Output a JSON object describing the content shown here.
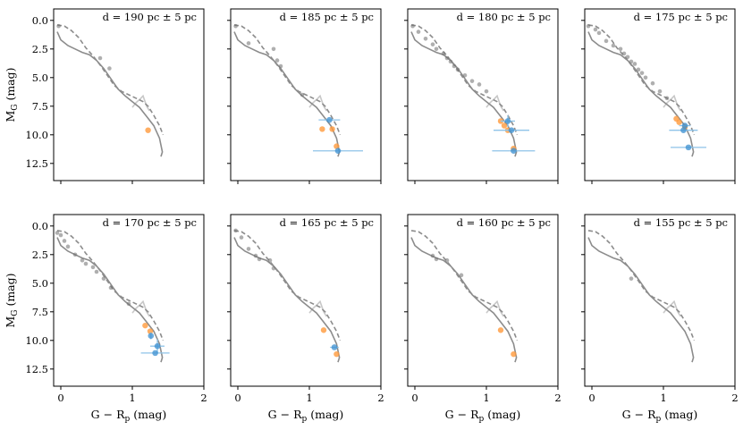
{
  "chart_data": {
    "type": "scatter",
    "layout": "2 rows x 4 columns of panels",
    "xlabel": "G − R",
    "xlabel_sub": "p",
    "xlabel_unit": "(mag)",
    "ylabel": "M",
    "ylabel_sub": "G",
    "ylabel_unit": "(mag)",
    "xlim": [
      -0.1,
      2.0
    ],
    "ylim": [
      14.0,
      -1.0
    ],
    "xticks": [
      0,
      1,
      2
    ],
    "yticks": [
      0.0,
      2.5,
      5.0,
      7.5,
      10.0,
      12.5
    ],
    "ytick_labels": [
      "0.0",
      "2.5",
      "5.0",
      "7.5",
      "10.0",
      "12.5"
    ],
    "series_meta": [
      {
        "name": "isochrone (solid)",
        "color": "#8c8c8c"
      },
      {
        "name": "isochrone (dashed)",
        "color": "#8c8c8c"
      },
      {
        "name": "isochrone (light)",
        "color": "#c8c8c8"
      },
      {
        "name": "gray stars",
        "color": "#6e6e6e"
      },
      {
        "name": "orange stars",
        "color": "#ff9a3c"
      },
      {
        "name": "blue stars",
        "color": "#3b8fd0"
      }
    ],
    "isochrones": {
      "solid": [
        [
          -0.05,
          1.0
        ],
        [
          0.0,
          1.7
        ],
        [
          0.1,
          2.2
        ],
        [
          0.2,
          2.5
        ],
        [
          0.3,
          2.8
        ],
        [
          0.4,
          3.0
        ],
        [
          0.5,
          3.5
        ],
        [
          0.6,
          4.2
        ],
        [
          0.7,
          5.1
        ],
        [
          0.8,
          6.0
        ],
        [
          0.9,
          6.6
        ],
        [
          1.0,
          7.1
        ],
        [
          1.1,
          7.6
        ],
        [
          1.2,
          8.4
        ],
        [
          1.3,
          9.2
        ],
        [
          1.38,
          10.3
        ],
        [
          1.42,
          11.5
        ],
        [
          1.4,
          11.9
        ]
      ],
      "dashed": [
        [
          -0.05,
          0.4
        ],
        [
          0.05,
          0.5
        ],
        [
          0.15,
          0.9
        ],
        [
          0.25,
          1.5
        ],
        [
          0.35,
          2.4
        ],
        [
          0.45,
          3.1
        ],
        [
          0.55,
          3.9
        ],
        [
          0.65,
          4.8
        ],
        [
          0.75,
          5.7
        ],
        [
          0.85,
          6.2
        ],
        [
          0.95,
          6.5
        ],
        [
          1.05,
          6.8
        ],
        [
          1.15,
          7.1
        ],
        [
          1.22,
          7.5
        ],
        [
          1.3,
          8.3
        ],
        [
          1.38,
          9.2
        ],
        [
          1.43,
          10.0
        ]
      ],
      "light": [
        [
          1.0,
          7.6
        ],
        [
          1.05,
          7.2
        ],
        [
          1.12,
          6.8
        ],
        [
          1.15,
          6.6
        ],
        [
          1.2,
          7.5
        ],
        [
          1.24,
          7.9
        ]
      ]
    },
    "panels": [
      {
        "label": "d = 190 pc ± 5 pc",
        "gray": [
          [
            -0.03,
            0.5
          ],
          [
            0.55,
            3.3
          ],
          [
            0.68,
            4.2
          ]
        ],
        "orange": [
          [
            1.22,
            9.6
          ]
        ],
        "blue": []
      },
      {
        "label": "d = 185 pc ± 5 pc",
        "gray": [
          [
            -0.03,
            0.5
          ],
          [
            0.15,
            2.0
          ],
          [
            0.5,
            2.5
          ],
          [
            0.55,
            3.5
          ],
          [
            0.6,
            4.0
          ],
          [
            0.9,
            6.5
          ]
        ],
        "orange": [
          [
            1.18,
            9.5
          ],
          [
            1.32,
            9.5
          ],
          [
            1.38,
            11.0
          ]
        ],
        "blue": [
          [
            1.28,
            8.7,
            0.15,
            0.0
          ],
          [
            1.4,
            11.4,
            0.35,
            0.0
          ]
        ]
      },
      {
        "label": "d = 180 pc ± 5 pc",
        "gray": [
          [
            -0.03,
            0.5
          ],
          [
            0.05,
            1.0
          ],
          [
            0.15,
            1.6
          ],
          [
            0.25,
            2.1
          ],
          [
            0.3,
            2.5
          ],
          [
            0.4,
            2.9
          ],
          [
            0.45,
            3.3
          ],
          [
            0.5,
            3.6
          ],
          [
            0.55,
            4.0
          ],
          [
            0.6,
            4.3
          ],
          [
            0.7,
            4.8
          ],
          [
            0.8,
            5.3
          ],
          [
            0.9,
            5.6
          ],
          [
            1.0,
            6.2
          ]
        ],
        "orange": [
          [
            1.2,
            8.8
          ],
          [
            1.25,
            9.2
          ],
          [
            1.3,
            9.6
          ],
          [
            1.38,
            11.2
          ]
        ],
        "blue": [
          [
            1.3,
            8.8,
            0.1,
            0.5
          ],
          [
            1.35,
            9.6,
            0.25,
            0.0
          ],
          [
            1.38,
            11.4,
            0.3,
            0.0
          ]
        ]
      },
      {
        "label": "d = 175 pc ± 5 pc",
        "gray": [
          [
            -0.05,
            0.5
          ],
          [
            0.05,
            0.8
          ],
          [
            0.1,
            1.1
          ],
          [
            0.2,
            1.8
          ],
          [
            0.3,
            2.2
          ],
          [
            0.4,
            2.5
          ],
          [
            0.45,
            2.9
          ],
          [
            0.5,
            3.2
          ],
          [
            0.55,
            3.6
          ],
          [
            0.6,
            3.8
          ],
          [
            0.65,
            4.3
          ],
          [
            0.7,
            4.6
          ],
          [
            0.75,
            5.0
          ],
          [
            0.85,
            5.5
          ],
          [
            0.95,
            6.2
          ],
          [
            1.05,
            6.8
          ]
        ],
        "orange": [
          [
            1.18,
            8.6
          ],
          [
            1.22,
            8.9
          ],
          [
            1.3,
            9.3
          ]
        ],
        "blue": [
          [
            1.28,
            9.6,
            0.2,
            0.0
          ],
          [
            1.35,
            11.1,
            0.25,
            0.0
          ],
          [
            1.3,
            9.2,
            0.08,
            0.0
          ]
        ]
      },
      {
        "label": "d = 170 pc ± 5 pc",
        "gray": [
          [
            -0.05,
            0.6
          ],
          [
            0.0,
            0.8
          ],
          [
            0.05,
            1.3
          ],
          [
            0.1,
            1.8
          ],
          [
            0.2,
            2.5
          ],
          [
            0.3,
            3.0
          ],
          [
            0.35,
            3.3
          ],
          [
            0.45,
            3.6
          ],
          [
            0.5,
            4.0
          ],
          [
            0.6,
            4.6
          ],
          [
            0.7,
            5.4
          ],
          [
            0.95,
            6.8
          ]
        ],
        "orange": [
          [
            1.18,
            8.7
          ],
          [
            1.25,
            9.2
          ]
        ],
        "blue": [
          [
            1.26,
            9.6,
            0.0,
            0.3
          ],
          [
            1.35,
            10.5,
            0.1,
            0.6
          ],
          [
            1.32,
            11.1,
            0.2,
            0.0
          ]
        ]
      },
      {
        "label": "d = 165 pc ± 5 pc",
        "gray": [
          [
            -0.03,
            0.4
          ],
          [
            0.05,
            1.0
          ],
          [
            0.15,
            2.0
          ],
          [
            0.25,
            2.6
          ],
          [
            0.3,
            2.9
          ],
          [
            0.45,
            3.0
          ],
          [
            0.5,
            3.7
          ]
        ],
        "orange": [
          [
            1.2,
            9.1
          ],
          [
            1.38,
            11.2
          ]
        ],
        "blue": [
          [
            1.35,
            10.6,
            0.06,
            0.0
          ]
        ]
      },
      {
        "label": "d = 160 pc ± 5 pc",
        "gray": [
          [
            0.25,
            2.6
          ],
          [
            0.3,
            2.9
          ],
          [
            0.45,
            3.0
          ],
          [
            0.65,
            4.3
          ]
        ],
        "orange": [
          [
            1.2,
            9.1
          ],
          [
            1.38,
            11.2
          ]
        ],
        "blue": []
      },
      {
        "label": "d = 155 pc ± 5 pc",
        "gray": [
          [
            0.55,
            4.6
          ]
        ],
        "orange": [],
        "blue": []
      }
    ]
  }
}
